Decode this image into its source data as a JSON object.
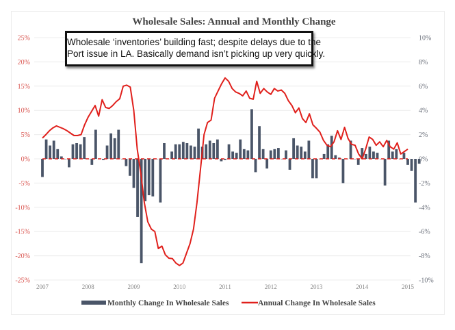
{
  "chart_data": {
    "type": "bar+line",
    "title": "Wholesale Sales: Annual and Monthly Change",
    "annotation": {
      "line1": "Wholesale ‘inventories’ building fast; despite delays due to the",
      "line2": "Port issue in LA. Basically demand isn’t picking up very quickly."
    },
    "left_axis": {
      "ticks": [
        "25%",
        "20%",
        "15%",
        "10%",
        "5%",
        "0%",
        "-5%",
        "-10%",
        "-15%",
        "-20%",
        "-25%"
      ],
      "range": [
        -25,
        25
      ],
      "color": "#d9544f"
    },
    "right_axis": {
      "ticks": [
        "10%",
        "8%",
        "6%",
        "4%",
        "2%",
        "0%",
        "-2%",
        "-4%",
        "-6%",
        "-8%",
        "-10%"
      ],
      "range": [
        -10,
        10
      ],
      "color": "#6a6f7a"
    },
    "x_ticks": [
      "2007",
      "2008",
      "2009",
      "2010",
      "2011",
      "2012",
      "2013",
      "2014",
      "2015"
    ],
    "x_range_months": [
      0,
      96
    ],
    "grid": true,
    "legend_position": "bottom",
    "series": [
      {
        "name": "Monthly Change In Wholesale Sales",
        "type": "bar",
        "axis": "right",
        "color": "#4a5568",
        "start_month": 0,
        "values": [
          -1.5,
          1.6,
          1.1,
          1.5,
          0.8,
          0.2,
          0.0,
          -0.7,
          1.2,
          1.3,
          1.2,
          1.8,
          0.0,
          -0.5,
          2.4,
          0.0,
          -0.1,
          1.1,
          2.1,
          1.7,
          2.4,
          0.0,
          -0.6,
          -1.4,
          -2.4,
          -4.8,
          -8.6,
          -3.5,
          -3.0,
          -3.1,
          0.0,
          -3.6,
          1.3,
          0.0,
          0.6,
          1.2,
          1.2,
          1.4,
          1.3,
          1.1,
          1.0,
          2.5,
          1.0,
          1.2,
          1.5,
          1.3,
          1.6,
          -0.2,
          -0.1,
          1.2,
          0.6,
          0.5,
          1.6,
          0.8,
          0.7,
          4.1,
          -1.1,
          2.7,
          0.8,
          -0.8,
          0.7,
          0.8,
          0.9,
          0.0,
          0.7,
          -0.9,
          1.7,
          1.1,
          1.0,
          0.6,
          1.5,
          -1.6,
          -1.6,
          0.0,
          0.4,
          1.2,
          1.9,
          0.3,
          0.1,
          -2.0,
          0.0,
          1.5,
          0.0,
          -0.5,
          0.9,
          0.4,
          1.0,
          0.6,
          0.5,
          0.0,
          -2.2,
          1.5,
          0.6,
          0.8,
          0.0,
          0.5,
          -0.5,
          -1.0,
          -3.6,
          -0.4
        ]
      },
      {
        "name": "Annual Change In Wholesale Sales",
        "type": "line",
        "axis": "left",
        "color": "#e0201c",
        "start_month": 0,
        "values": [
          4.3,
          5.0,
          5.8,
          6.4,
          6.8,
          6.5,
          6.2,
          5.8,
          5.3,
          4.8,
          4.8,
          5.0,
          7.0,
          8.6,
          9.8,
          11.0,
          8.8,
          12.2,
          10.6,
          10.4,
          11.0,
          11.8,
          12.4,
          15.0,
          15.2,
          14.8,
          10.0,
          2.0,
          -3.0,
          -9.0,
          -13.0,
          -14.5,
          -15.0,
          -18.5,
          -18.0,
          -19.8,
          -20.5,
          -20.6,
          -21.5,
          -22.0,
          -21.5,
          -19.5,
          -17.5,
          -14.5,
          -9.0,
          -2.0,
          5.0,
          7.5,
          8.0,
          12.5,
          14.0,
          15.5,
          16.7,
          16.0,
          14.5,
          13.8,
          13.5,
          13.0,
          14.0,
          12.5,
          12.3,
          16.0,
          13.5,
          14.5,
          13.8,
          13.3,
          14.5,
          14.0,
          14.2,
          13.5,
          12.0,
          11.0,
          9.5,
          10.5,
          8.3,
          7.5,
          9.3,
          7.0,
          6.3,
          5.5,
          3.8,
          2.8,
          2.5,
          3.5,
          5.8,
          4.0,
          6.5,
          4.2,
          3.0,
          2.8,
          1.0,
          0.0,
          2.0,
          4.5,
          4.0,
          2.8,
          3.5,
          2.5,
          3.8,
          2.5,
          2.0,
          3.3,
          1.0,
          1.5,
          2.0
        ]
      }
    ]
  }
}
